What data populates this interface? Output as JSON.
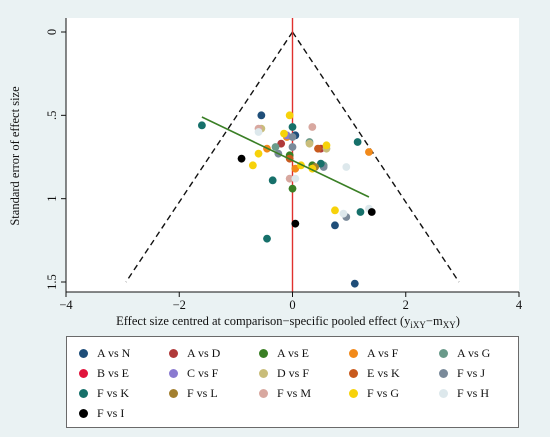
{
  "chart_data": {
    "type": "scatter",
    "subtype": "comparison-adjusted funnel plot",
    "xlabel": "Effect size centred at comparison−specific pooled effect (y",
    "xlabel_sub": "iXY",
    "xlabel_mid": "−m",
    "xlabel_sub2": "XY",
    "xlabel_end": ")",
    "ylabel": "Standard error of effect size",
    "xlim": [
      -4,
      4
    ],
    "ylim": [
      0,
      1.5
    ],
    "y_reversed": true,
    "xticks": [
      -4,
      -2,
      0,
      2,
      4
    ],
    "xtick_labels": [
      "−4",
      "−2",
      "0",
      "2",
      "4"
    ],
    "yticks": [
      0,
      0.5,
      1,
      1.5
    ],
    "ytick_labels": [
      "0",
      ".5",
      "1",
      "1.5"
    ],
    "grid": false,
    "legend_placement": "bottom",
    "reference_line": {
      "x": 0,
      "color": "#e0312e"
    },
    "funnel": {
      "apex": [
        0,
        0
      ],
      "left_base": [
        -2.94,
        1.5
      ],
      "right_base": [
        2.94,
        1.5
      ]
    },
    "fit_line": {
      "color": "#3a7f25",
      "x1": -1.6,
      "y1": 0.51,
      "x2": 1.35,
      "y2": 0.99
    },
    "series": [
      {
        "name": "A vs N",
        "color": "#1f4e79",
        "points": [
          [
            -0.55,
            0.5
          ],
          [
            0.75,
            1.16
          ],
          [
            1.1,
            1.51
          ],
          [
            0.05,
            0.62
          ]
        ]
      },
      {
        "name": "A vs D",
        "color": "#b03a3a",
        "points": [
          [
            -0.2,
            0.67
          ],
          [
            0.5,
            0.7
          ]
        ]
      },
      {
        "name": "A vs E",
        "color": "#3a7f25",
        "points": [
          [
            0.0,
            0.94
          ],
          [
            -0.05,
            0.74
          ],
          [
            0.35,
            0.8
          ]
        ]
      },
      {
        "name": "A vs F",
        "color": "#f28a1a",
        "points": [
          [
            1.35,
            0.72
          ],
          [
            -0.45,
            0.7
          ],
          [
            0.05,
            0.82
          ],
          [
            -0.1,
            0.63
          ]
        ]
      },
      {
        "name": "A vs G",
        "color": "#6a9a8a",
        "points": [
          [
            0.55,
            0.8
          ],
          [
            -0.3,
            0.69
          ],
          [
            0.3,
            0.66
          ]
        ]
      },
      {
        "name": "B vs E",
        "color": "#e0143c",
        "points": []
      },
      {
        "name": "C vs F",
        "color": "#8a7ad0",
        "points": [
          [
            -0.1,
            0.62
          ]
        ]
      },
      {
        "name": "D vs F",
        "color": "#c9bd7a",
        "points": [
          [
            -0.55,
            0.58
          ],
          [
            0.3,
            0.67
          ],
          [
            0.6,
            0.7
          ]
        ]
      },
      {
        "name": "E vs K",
        "color": "#c85a1e",
        "points": [
          [
            0.45,
            0.7
          ],
          [
            -0.05,
            0.76
          ]
        ]
      },
      {
        "name": "F vs J",
        "color": "#7a8a9a",
        "points": [
          [
            0.0,
            0.63
          ],
          [
            0.55,
            0.81
          ],
          [
            -0.25,
            0.73
          ],
          [
            0.0,
            0.69
          ],
          [
            0.95,
            1.11
          ]
        ]
      },
      {
        "name": "F vs K",
        "color": "#16706a",
        "points": [
          [
            -1.6,
            0.56
          ],
          [
            -0.35,
            0.89
          ],
          [
            -0.45,
            1.24
          ],
          [
            1.15,
            0.66
          ],
          [
            1.2,
            1.08
          ],
          [
            0.5,
            0.79
          ],
          [
            0.0,
            0.57
          ]
        ]
      },
      {
        "name": "F vs L",
        "color": "#a38030",
        "points": [
          [
            0.4,
            0.81
          ]
        ]
      },
      {
        "name": "F vs M",
        "color": "#d8a8a0",
        "points": [
          [
            -0.6,
            0.58
          ],
          [
            0.35,
            0.57
          ],
          [
            -0.05,
            0.88
          ]
        ]
      },
      {
        "name": "F vs G",
        "color": "#f7d20a",
        "points": [
          [
            -0.05,
            0.5
          ],
          [
            -0.7,
            0.8
          ],
          [
            0.6,
            0.68
          ],
          [
            0.75,
            1.07
          ],
          [
            -0.15,
            0.61
          ],
          [
            0.15,
            0.8
          ],
          [
            -0.6,
            0.73
          ],
          [
            0.35,
            0.82
          ]
        ]
      },
      {
        "name": "F vs H",
        "color": "#dde8ec",
        "points": [
          [
            0.95,
            0.81
          ],
          [
            1.35,
            1.06
          ],
          [
            -0.6,
            0.6
          ],
          [
            0.05,
            0.88
          ],
          [
            0.9,
            1.09
          ]
        ]
      },
      {
        "name": "F vs I",
        "color": "#000000",
        "points": [
          [
            -0.9,
            0.76
          ],
          [
            0.05,
            1.15
          ],
          [
            1.4,
            1.08
          ]
        ]
      }
    ]
  }
}
